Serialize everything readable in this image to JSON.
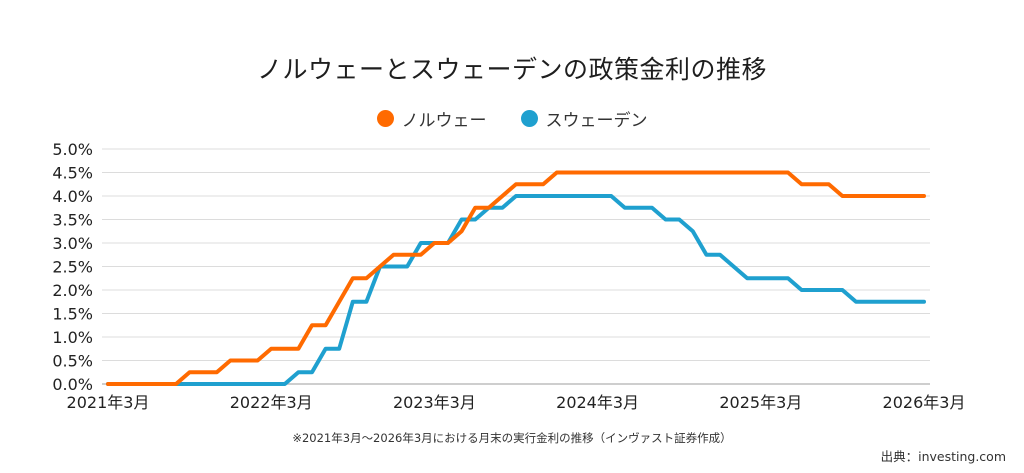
{
  "chart_data": {
    "type": "line",
    "title": "ノルウェーとスウェーデンの政策金利の推移",
    "xlabel": "",
    "ylabel": "",
    "x_start": "2021年3月",
    "x_end": "2026年3月",
    "x_ticks": [
      "2021年3月",
      "2022年3月",
      "2023年3月",
      "2024年3月",
      "2025年3月",
      "2026年3月"
    ],
    "x_tick_index": [
      0,
      12,
      24,
      36,
      48,
      60
    ],
    "y_ticks": [
      "0.0%",
      "0.5%",
      "1.0%",
      "1.5%",
      "2.0%",
      "2.5%",
      "3.0%",
      "3.5%",
      "4.0%",
      "4.5%",
      "5.0%"
    ],
    "ylim": [
      0,
      5
    ],
    "grid": true,
    "legend_position": "top-center",
    "series": [
      {
        "name": "ノルウェー",
        "color": "#FF6A00",
        "values": [
          0,
          0,
          0,
          0,
          0,
          0,
          0.25,
          0.25,
          0.25,
          0.5,
          0.5,
          0.5,
          0.75,
          0.75,
          0.75,
          1.25,
          1.25,
          1.75,
          2.25,
          2.25,
          2.5,
          2.75,
          2.75,
          2.75,
          3.0,
          3.0,
          3.25,
          3.75,
          3.75,
          4.0,
          4.25,
          4.25,
          4.25,
          4.5,
          4.5,
          4.5,
          4.5,
          4.5,
          4.5,
          4.5,
          4.5,
          4.5,
          4.5,
          4.5,
          4.5,
          4.5,
          4.5,
          4.5,
          4.5,
          4.5,
          4.5,
          4.25,
          4.25,
          4.25,
          4.0,
          4.0,
          4.0,
          4.0,
          4.0,
          4.0,
          4.0
        ]
      },
      {
        "name": "スウェーデン",
        "color": "#1FA0CF",
        "values": [
          0,
          0,
          0,
          0,
          0,
          0,
          0,
          0,
          0,
          0,
          0,
          0,
          0,
          0,
          0.25,
          0.25,
          0.75,
          0.75,
          1.75,
          1.75,
          2.5,
          2.5,
          2.5,
          3.0,
          3.0,
          3.0,
          3.5,
          3.5,
          3.75,
          3.75,
          4.0,
          4.0,
          4.0,
          4.0,
          4.0,
          4.0,
          4.0,
          4.0,
          3.75,
          3.75,
          3.75,
          3.5,
          3.5,
          3.25,
          2.75,
          2.75,
          2.5,
          2.25,
          2.25,
          2.25,
          2.25,
          2.0,
          2.0,
          2.0,
          2.0,
          1.75,
          1.75,
          1.75,
          1.75,
          1.75,
          1.75
        ]
      }
    ]
  },
  "note": "※2021年3月～2026年3月における月末の実行金利の推移（インヴァスト証券作成）",
  "source": "出典：investing.com"
}
